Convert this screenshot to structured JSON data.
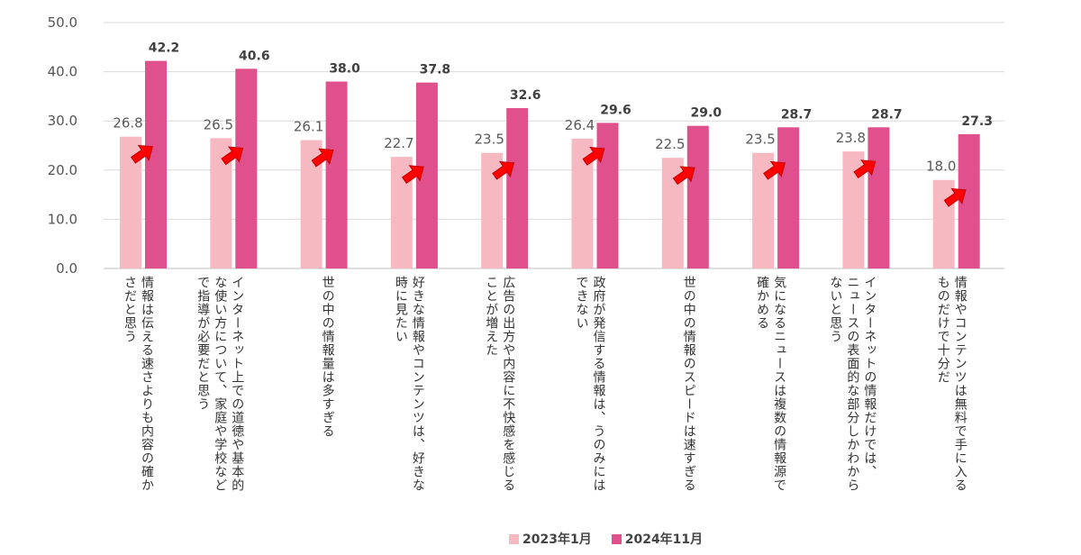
{
  "chart_data": {
    "type": "bar",
    "ylim": [
      0,
      50
    ],
    "yticks": [
      "0.0",
      "10.0",
      "20.0",
      "30.0",
      "40.0",
      "50.0"
    ],
    "grid": true,
    "legend_position": "bottom",
    "categories": [
      [
        "情報は伝える速さよりも内容の確か",
        "さだと思う"
      ],
      [
        "インターネット上での道徳や基本的",
        "な使い方について、家庭や学校など",
        "で指導が必要だと思う"
      ],
      [
        "世の中の情報量は多すぎる"
      ],
      [
        "好きな情報やコンテンツは、好きな",
        "時に見たい"
      ],
      [
        "広告の出方や内容に不快感を感じる",
        "ことが増えた"
      ],
      [
        "政府が発信する情報は、うのみには",
        "できない"
      ],
      [
        "世の中の情報のスピードは速すぎる"
      ],
      [
        "気になるニュースは複数の情報源で",
        "確かめる"
      ],
      [
        "インターネットの情報だけでは、",
        "ニュースの表面的な部分しかわから",
        "ないと思う"
      ],
      [
        "情報やコンテンツは無料で手に入る",
        "ものだけで十分だ"
      ]
    ],
    "series": [
      {
        "name": "2023年1月",
        "color": "#f7b9c1",
        "values": [
          26.8,
          26.5,
          26.1,
          22.7,
          23.5,
          26.4,
          22.5,
          23.5,
          23.8,
          18.0
        ],
        "labels": [
          "26.8",
          "26.5",
          "26.1",
          "22.7",
          "23.5",
          "26.4",
          "22.5",
          "23.5",
          "23.8",
          "18.0"
        ]
      },
      {
        "name": "2024年11月",
        "color": "#e0508d",
        "values": [
          42.2,
          40.6,
          38.0,
          37.8,
          32.6,
          29.6,
          29.0,
          28.7,
          28.7,
          27.3
        ],
        "labels": [
          "42.2",
          "40.6",
          "38.0",
          "37.8",
          "32.6",
          "29.6",
          "29.0",
          "28.7",
          "28.7",
          "27.3"
        ]
      }
    ],
    "arrow_color": "#ff0000"
  }
}
